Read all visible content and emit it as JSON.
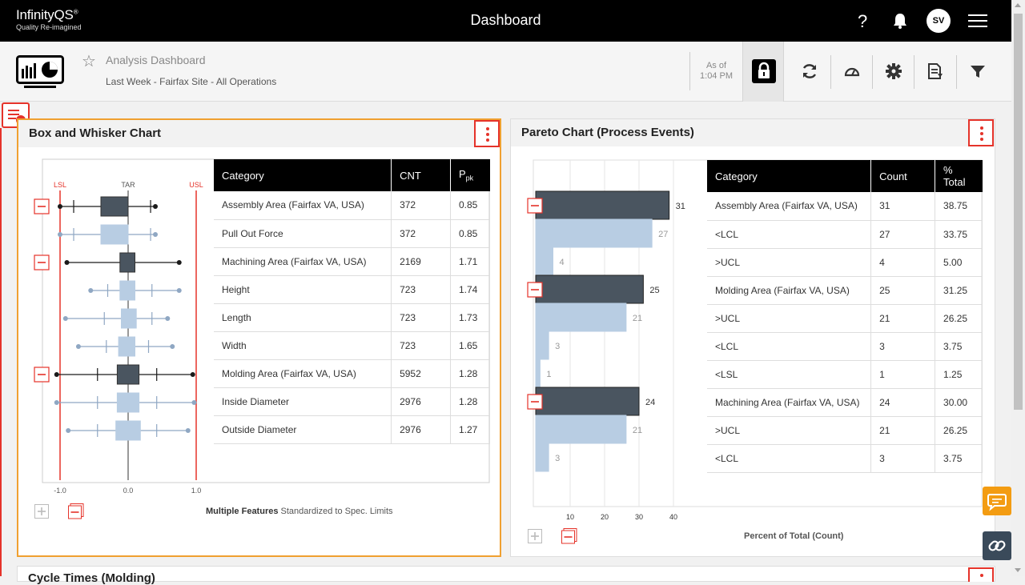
{
  "app": {
    "logo_name": "InfinityQS",
    "logo_tagline": "Quality Re-imagined",
    "page_title": "Dashboard",
    "help_label": "?",
    "user_initials": "SV"
  },
  "subheader": {
    "dashboard_name": "Analysis Dashboard",
    "context": "Last Week - Fairfax Site - All Operations",
    "asof_label": "As of",
    "asof_time": "1:04 PM"
  },
  "box_whisker": {
    "title": "Box and Whisker Chart",
    "labels": {
      "lsl": "LSL",
      "tar": "TAR",
      "usl": "USL"
    },
    "axis_ticks": [
      "-1.0",
      "0.0",
      "1.0"
    ],
    "footnote_bold": "Multiple Features",
    "footnote_rest": " Standardized to Spec. Limits",
    "columns": [
      "Category",
      "CNT",
      "Ppk"
    ],
    "rows": [
      {
        "category": "Assembly Area (Fairfax VA, USA)",
        "cnt": "372",
        "ppk": "0.85",
        "group": true
      },
      {
        "category": "Pull Out Force",
        "cnt": "372",
        "ppk": "0.85",
        "group": false
      },
      {
        "category": "Machining Area (Fairfax VA, USA)",
        "cnt": "2169",
        "ppk": "1.71",
        "group": true
      },
      {
        "category": "Height",
        "cnt": "723",
        "ppk": "1.74",
        "group": false
      },
      {
        "category": "Length",
        "cnt": "723",
        "ppk": "1.73",
        "group": false
      },
      {
        "category": "Width",
        "cnt": "723",
        "ppk": "1.65",
        "group": false
      },
      {
        "category": "Molding Area (Fairfax VA, USA)",
        "cnt": "5952",
        "ppk": "1.28",
        "group": true
      },
      {
        "category": "Inside Diameter",
        "cnt": "2976",
        "ppk": "1.28",
        "group": false
      },
      {
        "category": "Outside Diameter",
        "cnt": "2976",
        "ppk": "1.27",
        "group": false
      }
    ]
  },
  "pareto": {
    "title": "Pareto Chart (Process Events)",
    "axis_ticks": [
      "10",
      "20",
      "30",
      "40"
    ],
    "footnote": "Percent of Total (Count)",
    "columns": [
      "Category",
      "Count",
      "% Total"
    ],
    "rows": [
      {
        "category": "Assembly Area (Fairfax VA, USA)",
        "count": "31",
        "pct": "38.75",
        "group": true
      },
      {
        "category": "<LCL",
        "count": "27",
        "pct": "33.75",
        "group": false
      },
      {
        "category": ">UCL",
        "count": "4",
        "pct": "5.00",
        "group": false
      },
      {
        "category": "Molding Area (Fairfax VA, USA)",
        "count": "25",
        "pct": "31.25",
        "group": true
      },
      {
        "category": ">UCL",
        "count": "21",
        "pct": "26.25",
        "group": false
      },
      {
        "category": "<LCL",
        "count": "3",
        "pct": "3.75",
        "group": false
      },
      {
        "category": "<LSL",
        "count": "1",
        "pct": "1.25",
        "group": false
      },
      {
        "category": "Machining Area (Fairfax VA, USA)",
        "count": "24",
        "pct": "30.00",
        "group": true
      },
      {
        "category": ">UCL",
        "count": "21",
        "pct": "26.25",
        "group": false
      },
      {
        "category": "<LCL",
        "count": "3",
        "pct": "3.75",
        "group": false
      }
    ]
  },
  "third_panel": {
    "title": "Cycle Times (Molding)"
  },
  "colors": {
    "accent_red": "#e5332a",
    "accent_orange": "#f0a030",
    "dark_bar": "#4a5560",
    "light_bar": "#b8cde3"
  }
}
